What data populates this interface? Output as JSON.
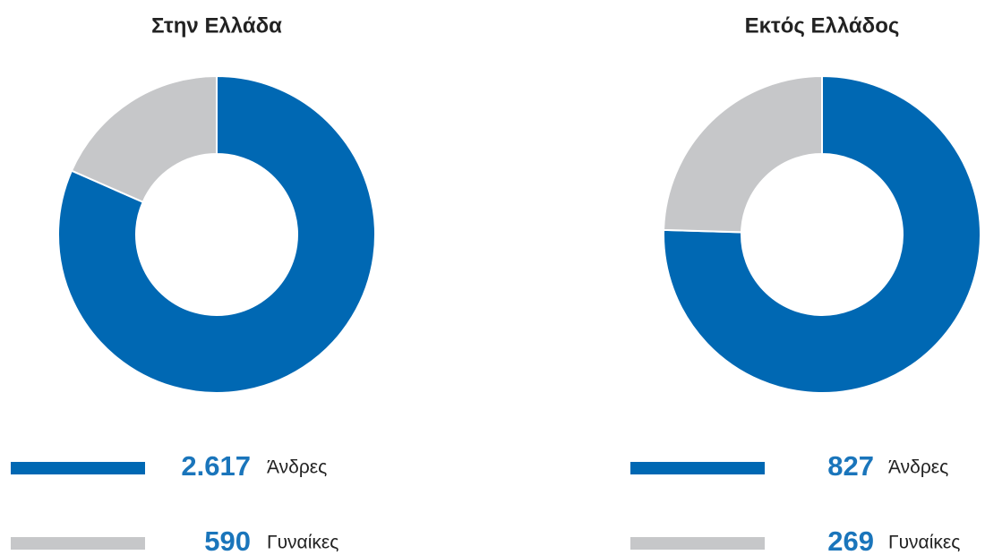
{
  "chart_data": [
    {
      "type": "donut",
      "title": "Στην Ελλάδα",
      "categories": [
        "Άνδρες",
        "Γυναίκες"
      ],
      "values": [
        2617,
        590
      ],
      "value_labels": [
        "2.617",
        "590"
      ],
      "colors": [
        "#0068b3",
        "#c6c7c9"
      ]
    },
    {
      "type": "donut",
      "title": "Εκτός Ελλάδος",
      "categories": [
        "Άνδρες",
        "Γυναίκες"
      ],
      "values": [
        827,
        269
      ],
      "value_labels": [
        "827",
        "269"
      ],
      "colors": [
        "#0068b3",
        "#c6c7c9"
      ]
    }
  ]
}
